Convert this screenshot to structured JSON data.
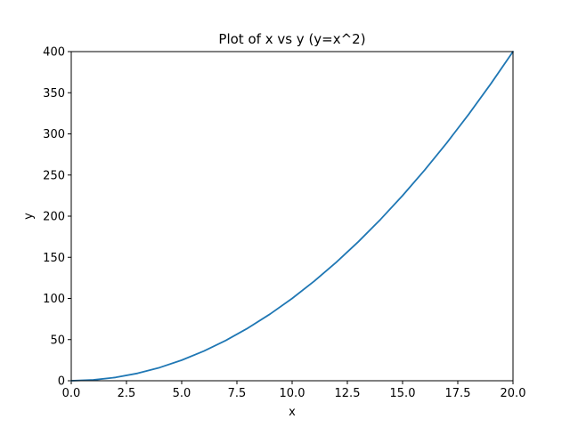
{
  "chart_data": {
    "type": "line",
    "title": "Plot of x vs y (y=x^2)",
    "xlabel": "x",
    "ylabel": "y",
    "xlim": [
      0,
      20
    ],
    "ylim": [
      0,
      400
    ],
    "grid": false,
    "x_ticks": [
      0,
      2.5,
      5,
      7.5,
      10,
      12.5,
      15,
      17.5,
      20
    ],
    "x_tick_labels": [
      "0.0",
      "2.5",
      "5.0",
      "7.5",
      "10.0",
      "12.5",
      "15.0",
      "17.5",
      "20.0"
    ],
    "y_ticks": [
      0,
      50,
      100,
      150,
      200,
      250,
      300,
      350,
      400
    ],
    "y_tick_labels": [
      "0",
      "50",
      "100",
      "150",
      "200",
      "250",
      "300",
      "350",
      "400"
    ],
    "series": [
      {
        "color": "#1f77b4",
        "x": [
          0,
          1,
          2,
          3,
          4,
          5,
          6,
          7,
          8,
          9,
          10,
          11,
          12,
          13,
          14,
          15,
          16,
          17,
          18,
          19,
          20
        ],
        "y": [
          0,
          1,
          4,
          9,
          16,
          25,
          36,
          49,
          64,
          81,
          100,
          121,
          144,
          169,
          196,
          225,
          256,
          289,
          324,
          361,
          400
        ]
      }
    ]
  }
}
